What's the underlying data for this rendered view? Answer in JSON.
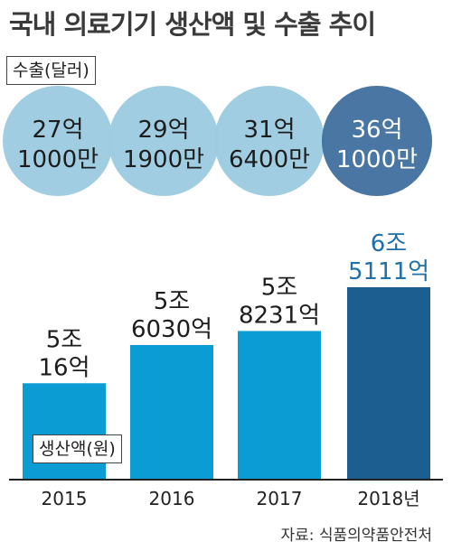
{
  "title": "국내 의료기기 생산액 및 수출 추이",
  "source": "자료: 식품의약품안전처",
  "colors": {
    "circle": "#9dcbe0",
    "circle_highlight": "#3f6f9d",
    "bar": "#0b9cd3",
    "bar_highlight": "#1c5e8f",
    "label_highlight": "#1f6fa8",
    "axis": "#222222"
  },
  "chart_data": [
    {
      "type": "bubble",
      "legend": "수출(달러)",
      "categories": [
        "2015",
        "2016",
        "2017",
        "2018"
      ],
      "values": [
        2710000000,
        2919000000,
        3164000000,
        3610000000
      ],
      "labels": [
        [
          "27억",
          "1000만"
        ],
        [
          "29억",
          "1900만"
        ],
        [
          "31억",
          "6400만"
        ],
        [
          "36억",
          "1000만"
        ]
      ],
      "highlight_index": 3
    },
    {
      "type": "bar",
      "legend": "생산액(원)",
      "categories": [
        "2015",
        "2016",
        "2017",
        "2018"
      ],
      "tick_labels": [
        "2015",
        "2016",
        "2017",
        "2018년"
      ],
      "values": [
        5.0016,
        5.603,
        5.8231,
        6.5111
      ],
      "value_unit": "조원",
      "labels": [
        [
          "5조",
          "16억"
        ],
        [
          "5조",
          "6030억"
        ],
        [
          "5조",
          "8231억"
        ],
        [
          "6조",
          "5111억"
        ]
      ],
      "highlight_index": 3,
      "ylim": [
        3.5,
        6.5111
      ]
    }
  ]
}
